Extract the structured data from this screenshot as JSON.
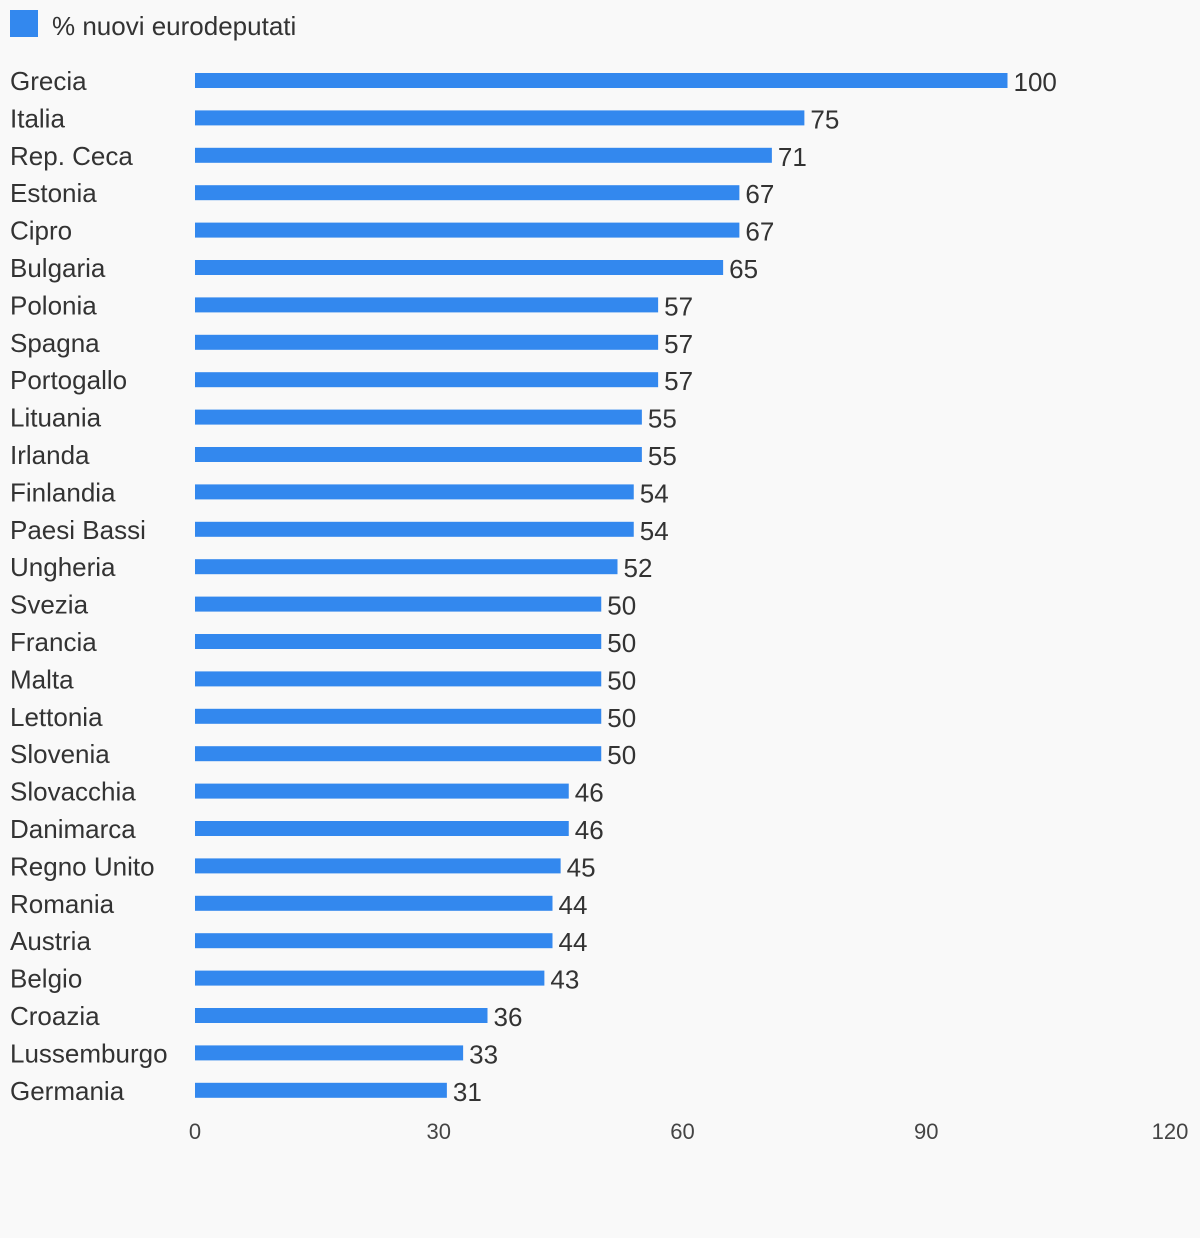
{
  "chart_data": {
    "type": "bar",
    "orientation": "horizontal",
    "categories": [
      "Grecia",
      "Italia",
      "Rep. Ceca",
      "Estonia",
      "Cipro",
      "Bulgaria",
      "Polonia",
      "Spagna",
      "Portogallo",
      "Lituania",
      "Irlanda",
      "Finlandia",
      "Paesi Bassi",
      "Ungheria",
      "Svezia",
      "Francia",
      "Malta",
      "Lettonia",
      "Slovenia",
      "Slovacchia",
      "Danimarca",
      "Regno Unito",
      "Romania",
      "Austria",
      "Belgio",
      "Croazia",
      "Lussemburgo",
      "Germania"
    ],
    "series": [
      {
        "name": "% nuovi eurodeputati",
        "values": [
          100,
          75,
          71,
          67,
          67,
          65,
          57,
          57,
          57,
          55,
          55,
          54,
          54,
          52,
          50,
          50,
          50,
          50,
          50,
          46,
          46,
          45,
          44,
          44,
          43,
          36,
          33,
          31
        ],
        "color": "#3388ee"
      }
    ],
    "xlim": [
      0,
      120
    ],
    "xticks": [
      0,
      30,
      60,
      90,
      120
    ],
    "grid": false,
    "legend": "top-left",
    "data_labels": true
  }
}
